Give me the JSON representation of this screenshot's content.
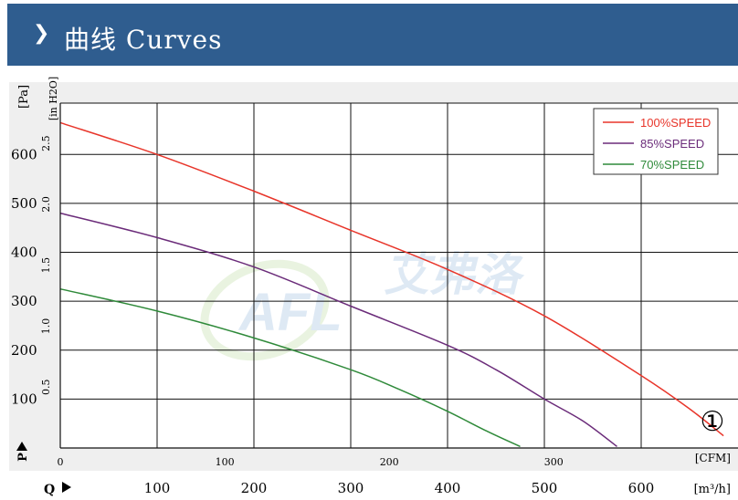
{
  "header": {
    "title": "曲线 Curves",
    "chevron": "chevron-right-icon"
  },
  "chart_data": {
    "type": "line",
    "xlabel_top": "[CFM]",
    "xlabel_bottom": "[m³/h]",
    "ylabel_left": "[Pa]",
    "ylabel_right": "[in H2O]",
    "pressure_marker": "P",
    "flow_marker": "Q",
    "curve_id": "①",
    "watermark": "艾弗洛",
    "grid": true,
    "legend_position": "top-right",
    "x_cfm_ticks": [
      0,
      100,
      200,
      300
    ],
    "x_m3h_ticks": [
      100,
      200,
      300,
      400,
      500,
      600
    ],
    "y_pa_ticks": [
      100,
      200,
      300,
      400,
      500,
      600
    ],
    "y_inh2o_ticks": [
      "0.5",
      "1.0",
      "1.5",
      "2.0",
      "2.5"
    ],
    "xlim_m3h": [
      0,
      700
    ],
    "ylim_pa": [
      0,
      705
    ],
    "series": [
      {
        "name": "100%SPEED",
        "color": "#e8352a",
        "x": [
          0,
          100,
          200,
          300,
          400,
          500,
          600,
          650,
          685
        ],
        "y": [
          665,
          600,
          525,
          445,
          365,
          270,
          148,
          80,
          25
        ]
      },
      {
        "name": "85%SPEED",
        "color": "#6b2c7a",
        "x": [
          0,
          100,
          200,
          300,
          400,
          450,
          500,
          540,
          575
        ],
        "y": [
          480,
          430,
          370,
          290,
          210,
          160,
          100,
          55,
          3
        ]
      },
      {
        "name": "70%SPEED",
        "color": "#2f8a3a",
        "x": [
          0,
          100,
          200,
          300,
          350,
          400,
          440,
          475
        ],
        "y": [
          325,
          280,
          225,
          160,
          120,
          75,
          35,
          3
        ]
      }
    ]
  }
}
